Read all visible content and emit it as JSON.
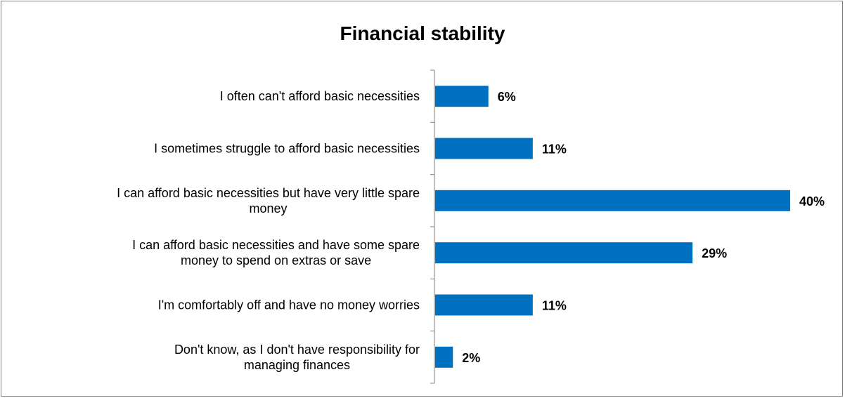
{
  "chart_data": {
    "type": "bar",
    "orientation": "horizontal",
    "title": "Financial stability",
    "categories": [
      [
        "I often can't afford basic necessities"
      ],
      [
        "I sometimes struggle to afford basic necessities"
      ],
      [
        "I can afford basic necessities but have very little spare",
        "money"
      ],
      [
        "I can afford basic necessities and have some spare",
        "money to spend on extras or save"
      ],
      [
        "I'm comfortably off and have no money worries"
      ],
      [
        "Don't know, as I don't have responsibility for",
        "managing finances"
      ]
    ],
    "values": [
      6,
      11,
      40,
      29,
      11,
      2
    ],
    "value_labels": [
      "6%",
      "11%",
      "40%",
      "29%",
      "11%",
      "2%"
    ],
    "xlim": [
      0,
      40
    ],
    "grid": false,
    "legend": "none",
    "bar_color": "#0070C0"
  }
}
